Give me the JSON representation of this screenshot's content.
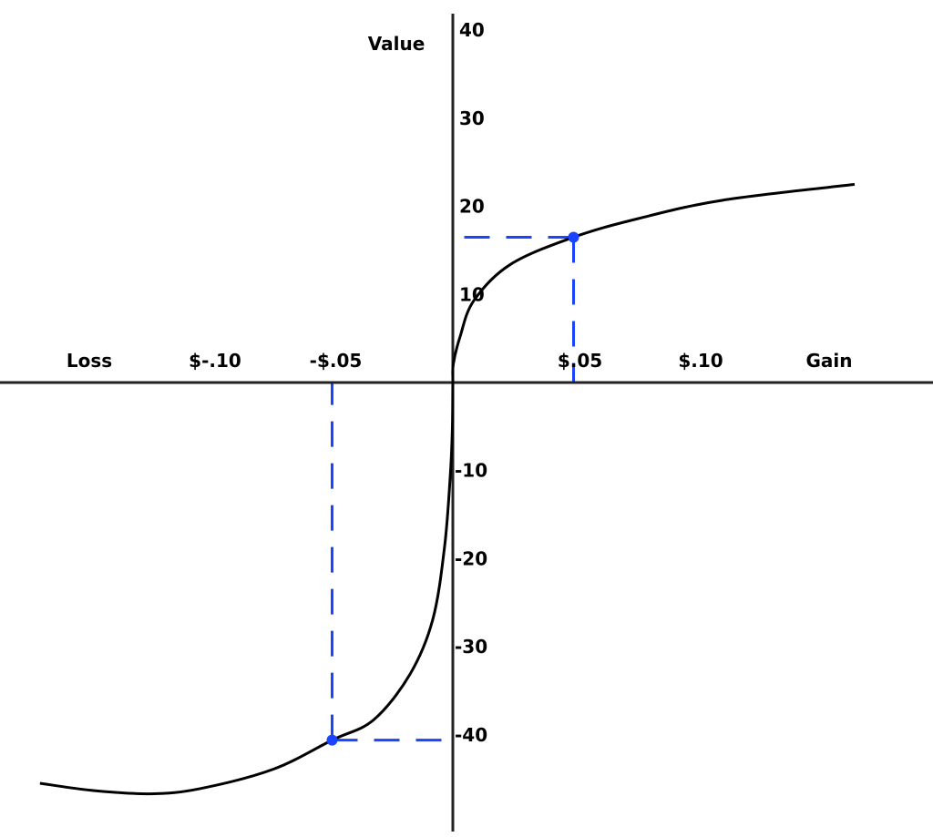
{
  "chart_data": {
    "type": "line",
    "title": "",
    "xlabel_left": "Loss",
    "xlabel_right": "Gain",
    "ylabel": "Value",
    "x_ticks": [
      {
        "value": -0.1,
        "label": "$-.10"
      },
      {
        "value": -0.05,
        "label": "-$.05"
      },
      {
        "value": 0.05,
        "label": "$.05"
      },
      {
        "value": 0.1,
        "label": "$.10"
      }
    ],
    "y_ticks": [
      {
        "value": 40,
        "label": "40"
      },
      {
        "value": 30,
        "label": "30"
      },
      {
        "value": 20,
        "label": "20"
      },
      {
        "value": 10,
        "label": "10"
      },
      {
        "value": -10,
        "label": "-10"
      },
      {
        "value": -20,
        "label": "-20"
      },
      {
        "value": -30,
        "label": "-30"
      },
      {
        "value": -40,
        "label": "-40"
      }
    ],
    "xlim": [
      -0.19,
      0.2
    ],
    "ylim": [
      -51,
      43
    ],
    "grid": false,
    "series": [
      {
        "color": "#000000",
        "points": [
          [
            -0.171,
            -45.5
          ],
          [
            -0.1498,
            -46.3
          ],
          [
            -0.1253,
            -46.7
          ],
          [
            -0.1045,
            -46.1
          ],
          [
            -0.0743,
            -43.9
          ],
          [
            -0.05,
            -40.6
          ],
          [
            -0.0328,
            -38.3
          ],
          [
            -0.0177,
            -33.1
          ],
          [
            -0.0083,
            -26.9
          ],
          [
            -0.0034,
            -18.6
          ],
          [
            -0.001,
            -10.3
          ],
          [
            -0.0002,
            -5.2
          ],
          [
            0,
            0
          ],
          [
            0.0002,
            2.1
          ],
          [
            0.003,
            5.2
          ],
          [
            0.0087,
            9.3
          ],
          [
            0.0238,
            13.4
          ],
          [
            0.05,
            16.5
          ],
          [
            0.0766,
            18.6
          ],
          [
            0.1117,
            20.7
          ],
          [
            0.1664,
            22.5
          ]
        ]
      }
    ],
    "highlights": {
      "color": "#1a44ff",
      "points": [
        {
          "x": 0.05,
          "y": 16.5
        },
        {
          "x": -0.05,
          "y": -40.6
        }
      ]
    }
  }
}
